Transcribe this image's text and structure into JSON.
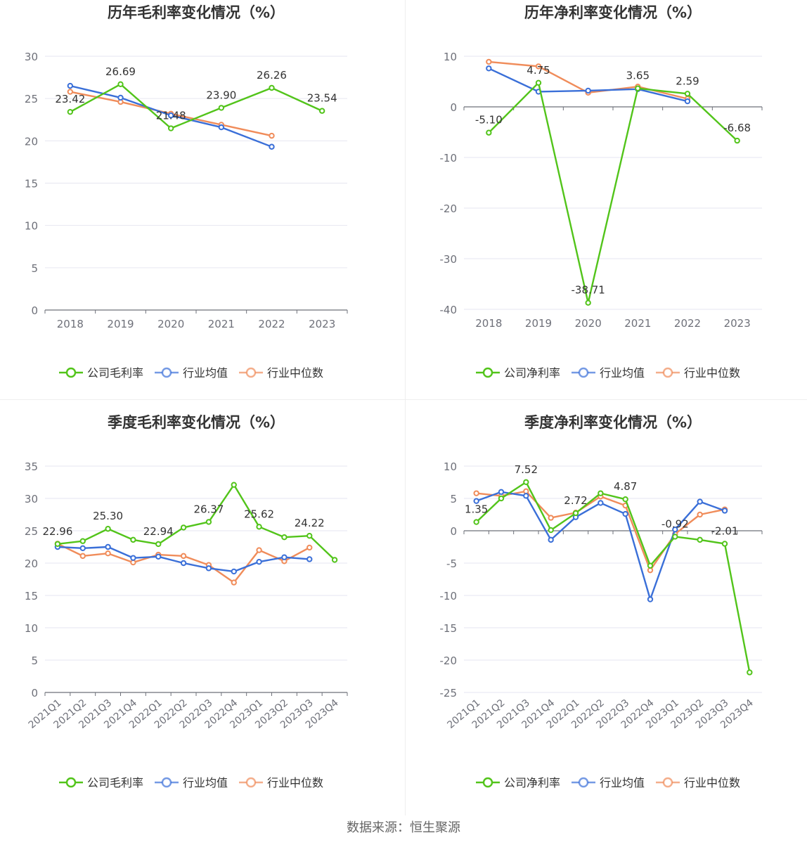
{
  "source_text": "数据来源：恒生聚源",
  "colors": {
    "company": "#52c41a",
    "avg": "#3a6fd8",
    "median": "#f08c5a",
    "grid": "#e6e6f0",
    "axis": "#6e7079"
  },
  "chart_data": [
    {
      "type": "line",
      "title": "历年毛利率变化情况（%）",
      "categories": [
        "2018",
        "2019",
        "2020",
        "2021",
        "2022",
        "2023"
      ],
      "ylim": [
        0,
        30
      ],
      "yticks": [
        0,
        5,
        10,
        15,
        20,
        25,
        30
      ],
      "grid": true,
      "legend_position": "bottom-center",
      "series": [
        {
          "name": "公司毛利率",
          "color": "#52c41a",
          "values": [
            23.42,
            26.69,
            21.48,
            23.9,
            26.26,
            23.54
          ],
          "labels": [
            "23.42",
            "26.69",
            "21.48",
            "23.90",
            "26.26",
            "23.54"
          ]
        },
        {
          "name": "行业均值",
          "color": "#3a6fd8",
          "values": [
            26.5,
            25.1,
            23.0,
            21.6,
            19.3,
            null
          ]
        },
        {
          "name": "行业中位数",
          "color": "#f08c5a",
          "values": [
            25.8,
            24.6,
            23.2,
            21.9,
            20.6,
            null
          ]
        }
      ]
    },
    {
      "type": "line",
      "title": "历年净利率变化情况（%）",
      "categories": [
        "2018",
        "2019",
        "2020",
        "2021",
        "2022",
        "2023"
      ],
      "ylim": [
        -40,
        10
      ],
      "yticks": [
        -40,
        -30,
        -20,
        -10,
        0,
        10
      ],
      "grid": true,
      "legend_position": "bottom-center",
      "series": [
        {
          "name": "公司净利率",
          "color": "#52c41a",
          "values": [
            -5.1,
            4.75,
            -38.71,
            3.65,
            2.59,
            -6.68
          ],
          "labels": [
            "-5.10",
            "4.75",
            "-38.71",
            "3.65",
            "2.59",
            "-6.68"
          ]
        },
        {
          "name": "行业均值",
          "color": "#3a6fd8",
          "values": [
            7.6,
            3.0,
            3.2,
            3.5,
            1.1,
            null
          ]
        },
        {
          "name": "行业中位数",
          "color": "#f08c5a",
          "values": [
            8.9,
            8.0,
            2.8,
            4.0,
            1.6,
            null
          ]
        }
      ]
    },
    {
      "type": "line",
      "title": "季度毛利率变化情况（%）",
      "categories": [
        "2021Q1",
        "2021Q2",
        "2021Q3",
        "2021Q4",
        "2022Q1",
        "2022Q2",
        "2022Q3",
        "2022Q4",
        "2023Q1",
        "2023Q2",
        "2023Q3",
        "2023Q4"
      ],
      "ylim": [
        0,
        35
      ],
      "yticks": [
        0,
        5,
        10,
        15,
        20,
        25,
        30,
        35
      ],
      "grid": true,
      "legend_position": "bottom-center",
      "series": [
        {
          "name": "公司毛利率",
          "color": "#52c41a",
          "values": [
            22.96,
            23.4,
            25.3,
            23.6,
            22.94,
            25.5,
            26.37,
            32.1,
            25.62,
            24.0,
            24.22,
            20.5
          ],
          "labels": [
            "22.96",
            "",
            "25.30",
            "",
            "22.94",
            "",
            "26.37",
            "",
            "25.62",
            "",
            "24.22",
            ""
          ]
        },
        {
          "name": "行业均值",
          "color": "#3a6fd8",
          "values": [
            22.5,
            22.3,
            22.5,
            20.8,
            21.0,
            20.0,
            19.2,
            18.7,
            20.2,
            20.9,
            20.6,
            null
          ]
        },
        {
          "name": "行业中位数",
          "color": "#f08c5a",
          "values": [
            23.0,
            21.1,
            21.5,
            20.1,
            21.3,
            21.1,
            19.7,
            17.0,
            22.0,
            20.3,
            22.4,
            null
          ]
        }
      ]
    },
    {
      "type": "line",
      "title": "季度净利率变化情况（%）",
      "categories": [
        "2021Q1",
        "2021Q2",
        "2021Q3",
        "2021Q4",
        "2022Q1",
        "2022Q2",
        "2022Q3",
        "2022Q4",
        "2023Q1",
        "2023Q2",
        "2023Q3",
        "2023Q4"
      ],
      "ylim": [
        -25,
        10
      ],
      "yticks": [
        -25,
        -20,
        -15,
        -10,
        -5,
        0,
        5,
        10
      ],
      "grid": true,
      "legend_position": "bottom-center",
      "series": [
        {
          "name": "公司净利率",
          "color": "#52c41a",
          "values": [
            1.35,
            5.0,
            7.52,
            0.1,
            2.72,
            5.8,
            4.87,
            -5.4,
            -0.92,
            -1.4,
            -2.01,
            -21.9
          ],
          "labels": [
            "1.35",
            "",
            "7.52",
            "",
            "2.72",
            "",
            "4.87",
            "",
            "-0.92",
            "",
            "-2.01",
            ""
          ]
        },
        {
          "name": "行业均值",
          "color": "#3a6fd8",
          "values": [
            4.6,
            6.0,
            5.4,
            -1.4,
            2.1,
            4.3,
            2.6,
            -10.6,
            0.2,
            4.5,
            3.1,
            null
          ]
        },
        {
          "name": "行业中位数",
          "color": "#f08c5a",
          "values": [
            5.8,
            5.4,
            6.1,
            2.0,
            2.8,
            5.3,
            3.9,
            -6.1,
            -0.5,
            2.5,
            3.3,
            null
          ]
        }
      ]
    }
  ]
}
